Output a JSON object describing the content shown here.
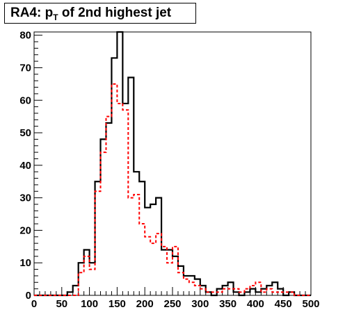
{
  "title": {
    "prefix": "RA4: p",
    "subscript": "T",
    "suffix": " of 2nd highest jet"
  },
  "chart_data": {
    "type": "histogram",
    "x_ticks": [
      "0",
      "50",
      "100",
      "150",
      "200",
      "250",
      "300",
      "350",
      "400",
      "450",
      "500"
    ],
    "y_ticks": [
      "0",
      "10",
      "20",
      "30",
      "40",
      "50",
      "60",
      "70",
      "80"
    ],
    "xlim": [
      0,
      500
    ],
    "ylim": [
      0,
      81
    ],
    "bin_width": 10,
    "bin_edges_start": 0,
    "colors": {
      "series1": "#000000",
      "series2": "#ff0000"
    },
    "series": [
      {
        "style": "solid",
        "values": [
          0,
          0,
          0,
          0,
          0,
          0,
          1,
          3,
          10,
          14,
          10,
          35,
          48,
          53,
          73,
          81,
          59,
          67,
          38,
          35,
          27,
          28,
          30,
          14,
          14,
          12,
          9,
          6,
          6,
          5,
          3,
          1,
          0,
          2,
          3,
          4,
          1,
          0,
          1,
          2,
          1,
          2,
          3,
          4,
          2,
          0,
          1,
          0,
          0,
          0
        ]
      },
      {
        "style": "dashed",
        "values": [
          0,
          0,
          0,
          0,
          0,
          0,
          0,
          0,
          7,
          12,
          8,
          32,
          44,
          55,
          65,
          59,
          57,
          30,
          31,
          22,
          18,
          16,
          19,
          15,
          10,
          15,
          7,
          5,
          4,
          3,
          2,
          1,
          1,
          1,
          2,
          2,
          2,
          1,
          2,
          3,
          4,
          1,
          2,
          1,
          1,
          1,
          1,
          0,
          0,
          0
        ]
      }
    ]
  }
}
